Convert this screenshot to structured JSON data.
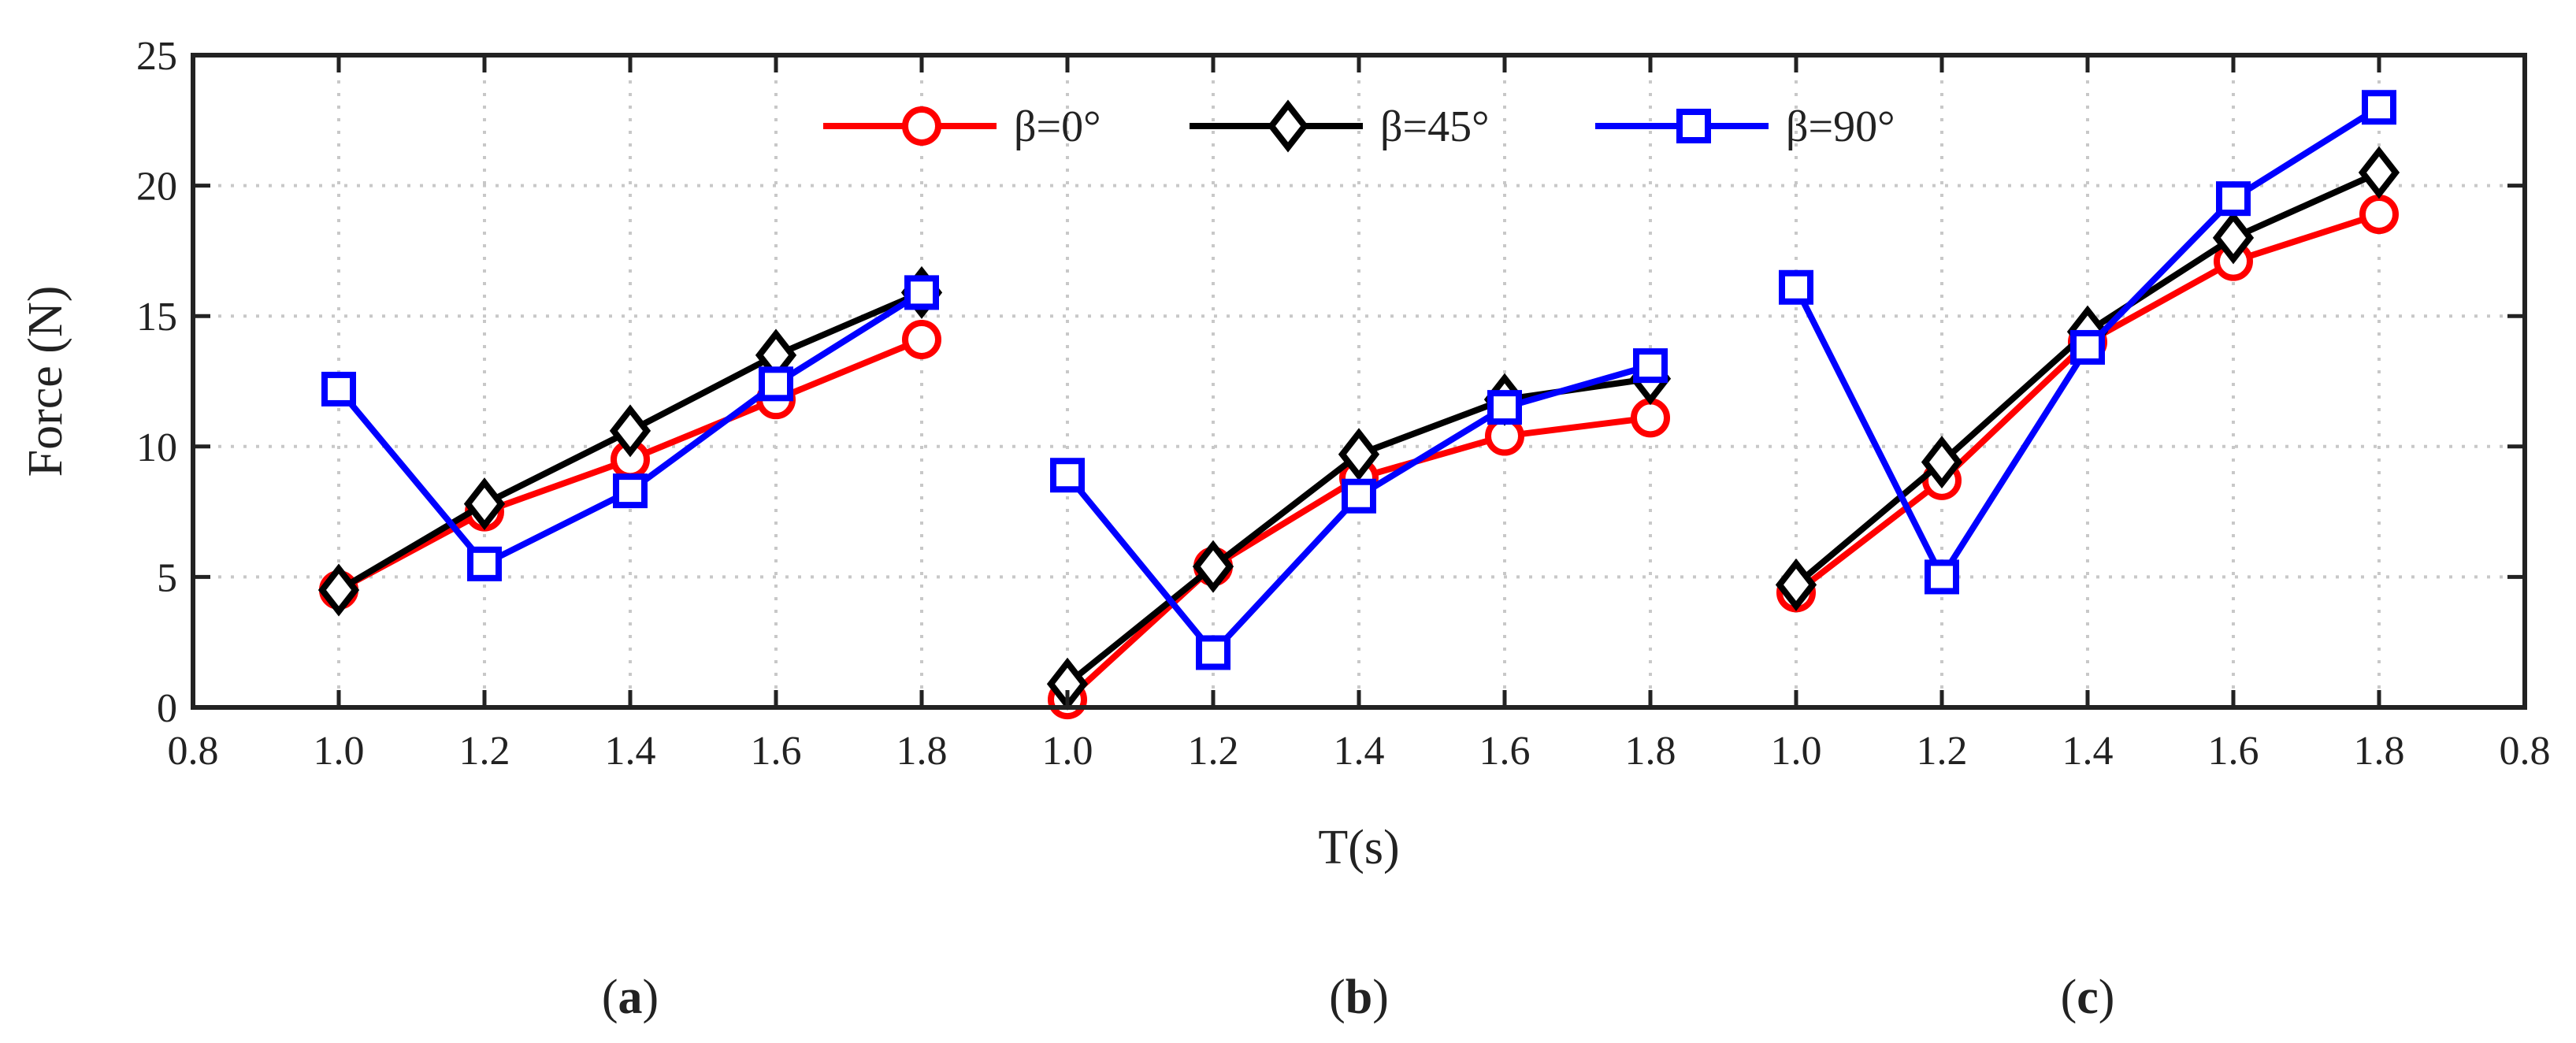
{
  "chart_data": {
    "type": "line",
    "ylabel": "Force (N)",
    "xlabel": "T(s)",
    "ylim": [
      0,
      25
    ],
    "yticks": [
      "0",
      "5",
      "10",
      "15",
      "20",
      "25"
    ],
    "xtick_labels": [
      "0.8",
      "1.0",
      "1.2",
      "1.4",
      "1.6",
      "1.8",
      "1.0",
      "1.2",
      "1.4",
      "1.6",
      "1.8",
      "1.0",
      "1.2",
      "1.4",
      "1.6",
      "1.8",
      "0.8"
    ],
    "grid": true,
    "legend_position": "top-center",
    "panel_labels": [
      "a",
      "b",
      "c"
    ],
    "colors": {
      "beta0": "#ff0000",
      "beta45": "#000000",
      "beta90": "#0000ff"
    },
    "panels": [
      {
        "label": "a",
        "x": [
          1.0,
          1.2,
          1.4,
          1.6,
          1.8
        ],
        "series": [
          {
            "name": "β=0°",
            "marker": "circle",
            "values": [
              4.5,
              7.5,
              9.5,
              11.8,
              14.1
            ]
          },
          {
            "name": "β=45°",
            "marker": "diamond",
            "values": [
              4.5,
              7.8,
              10.6,
              13.5,
              15.9
            ]
          },
          {
            "name": "β=90°",
            "marker": "square",
            "values": [
              12.2,
              5.5,
              8.3,
              12.4,
              15.9
            ]
          }
        ]
      },
      {
        "label": "b",
        "x": [
          1.0,
          1.2,
          1.4,
          1.6,
          1.8
        ],
        "series": [
          {
            "name": "β=0°",
            "marker": "circle",
            "values": [
              0.3,
              5.4,
              8.8,
              10.4,
              11.1
            ]
          },
          {
            "name": "β=45°",
            "marker": "diamond",
            "values": [
              0.9,
              5.4,
              9.7,
              11.8,
              12.6
            ]
          },
          {
            "name": "β=90°",
            "marker": "square",
            "values": [
              8.9,
              2.1,
              8.1,
              11.5,
              13.1
            ]
          }
        ]
      },
      {
        "label": "c",
        "x": [
          1.0,
          1.2,
          1.4,
          1.6,
          1.8
        ],
        "series": [
          {
            "name": "β=0°",
            "marker": "circle",
            "values": [
              4.4,
              8.7,
              14.0,
              17.1,
              18.9
            ]
          },
          {
            "name": "β=45°",
            "marker": "diamond",
            "values": [
              4.7,
              9.4,
              14.4,
              18.0,
              20.5
            ]
          },
          {
            "name": "β=90°",
            "marker": "square",
            "values": [
              16.1,
              5.0,
              13.8,
              19.5,
              23.0
            ]
          }
        ]
      }
    ]
  }
}
